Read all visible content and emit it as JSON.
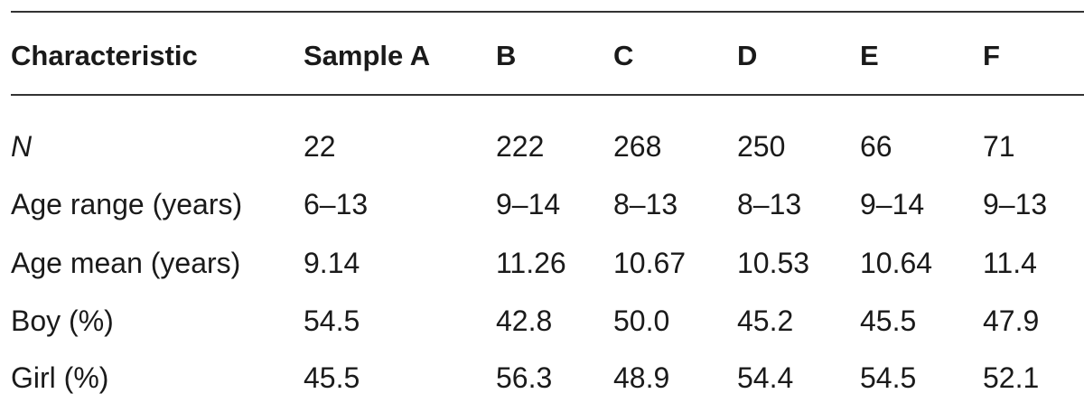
{
  "table": {
    "headers": [
      "Characteristic",
      "Sample A",
      "B",
      "C",
      "D",
      "E",
      "F"
    ],
    "rows": [
      {
        "label": "N",
        "values": [
          "22",
          "222",
          "268",
          "250",
          "66",
          "71"
        ]
      },
      {
        "label": "Age range (years)",
        "values": [
          "6–13",
          "9–14",
          "8–13",
          "8–13",
          "9–14",
          "9–13"
        ]
      },
      {
        "label": "Age mean (years)",
        "values": [
          "9.14",
          "11.26",
          "10.67",
          "10.53",
          "10.64",
          "11.4"
        ]
      },
      {
        "label": "Boy (%)",
        "values": [
          "54.5",
          "42.8",
          "50.0",
          "45.2",
          "45.5",
          "47.9"
        ]
      },
      {
        "label": "Girl (%)",
        "values": [
          "45.5",
          "56.3",
          "48.9",
          "54.4",
          "54.5",
          "52.1"
        ]
      }
    ]
  }
}
